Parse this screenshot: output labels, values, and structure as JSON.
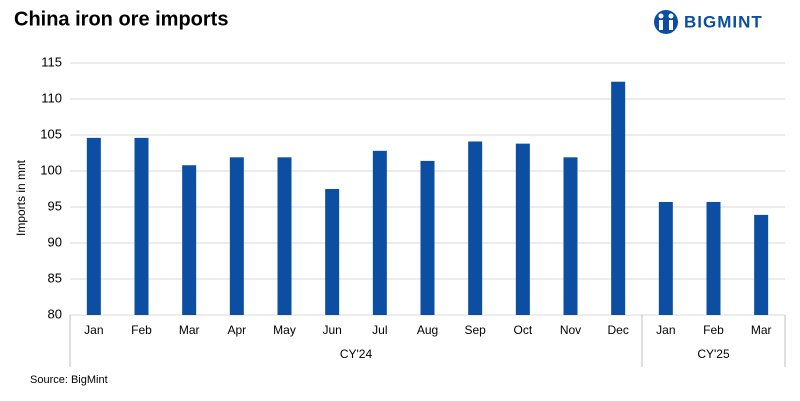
{
  "chart_data": {
    "type": "bar",
    "title": "China iron ore imports",
    "logo": "BIGMINT",
    "source": "Source: BigMint",
    "y_label": "Imports in mnt",
    "color": "#0b4ea2",
    "groups": [
      {
        "name": "CY'24",
        "categories": [
          "Jan",
          "Feb",
          "Mar",
          "Apr",
          "May",
          "Jun",
          "Jul",
          "Aug",
          "Sep",
          "Oct",
          "Nov",
          "Dec"
        ],
        "values": [
          104.6,
          104.6,
          100.8,
          101.9,
          101.9,
          97.5,
          102.8,
          101.4,
          104.1,
          103.8,
          101.9,
          112.4
        ]
      },
      {
        "name": "CY'25",
        "categories": [
          "Jan",
          "Feb",
          "Mar"
        ],
        "values": [
          95.7,
          95.7,
          93.9
        ]
      }
    ],
    "ylim": [
      80,
      115
    ],
    "yticks": [
      80,
      85,
      90,
      95,
      100,
      105,
      110,
      115
    ],
    "grid": true
  }
}
